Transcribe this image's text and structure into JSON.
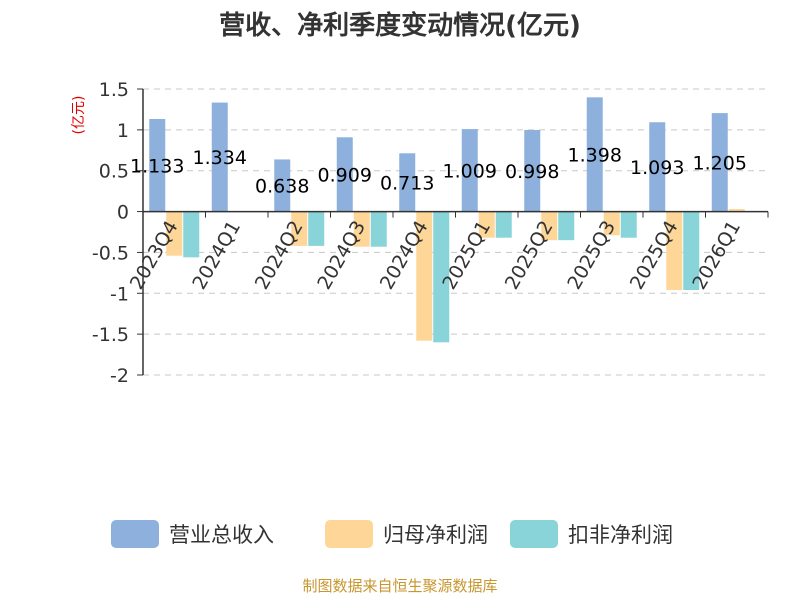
{
  "chart_data": {
    "type": "bar",
    "title": "营收、净利季度变动情况(亿元)",
    "ylabel": "(亿元)",
    "xlabel": "",
    "ylim": [
      -2,
      1.5
    ],
    "yticks": [
      1.5,
      1,
      0.5,
      0,
      -0.5,
      -1,
      -1.5,
      -2
    ],
    "ytick_labels": [
      "1.5",
      "1",
      "0.5",
      "0",
      "-0.5",
      "-1",
      "-1.5",
      "-2"
    ],
    "grid": "horizontal-dashed",
    "categories": [
      "2023Q4",
      "2024Q1",
      "2024Q2",
      "2024Q3",
      "2024Q4",
      "2025Q1",
      "2025Q2",
      "2025Q3",
      "2025Q4",
      "2026Q1"
    ],
    "series": [
      {
        "name": "营业总收入",
        "color": "#8eb0dc",
        "values": [
          1.133,
          1.334,
          0.638,
          0.909,
          0.713,
          1.009,
          0.998,
          1.398,
          1.093,
          1.205
        ],
        "labels": [
          "1.133",
          "1.334",
          "0.638",
          "0.909",
          "0.713",
          "1.009",
          "0.998",
          "1.398",
          "1.093",
          "1.205"
        ]
      },
      {
        "name": "归母净利润",
        "color": "#fdd698",
        "values": [
          -0.54,
          0,
          -0.42,
          -0.43,
          -1.58,
          -0.32,
          -0.35,
          -0.29,
          -0.96,
          0.03
        ]
      },
      {
        "name": "扣非净利润",
        "color": "#88d4d8",
        "values": [
          -0.56,
          0,
          -0.42,
          -0.43,
          -1.6,
          -0.32,
          -0.35,
          -0.32,
          -0.96,
          0
        ]
      }
    ],
    "legend_position": "bottom",
    "source": "制图数据来自恒生聚源数据库"
  }
}
